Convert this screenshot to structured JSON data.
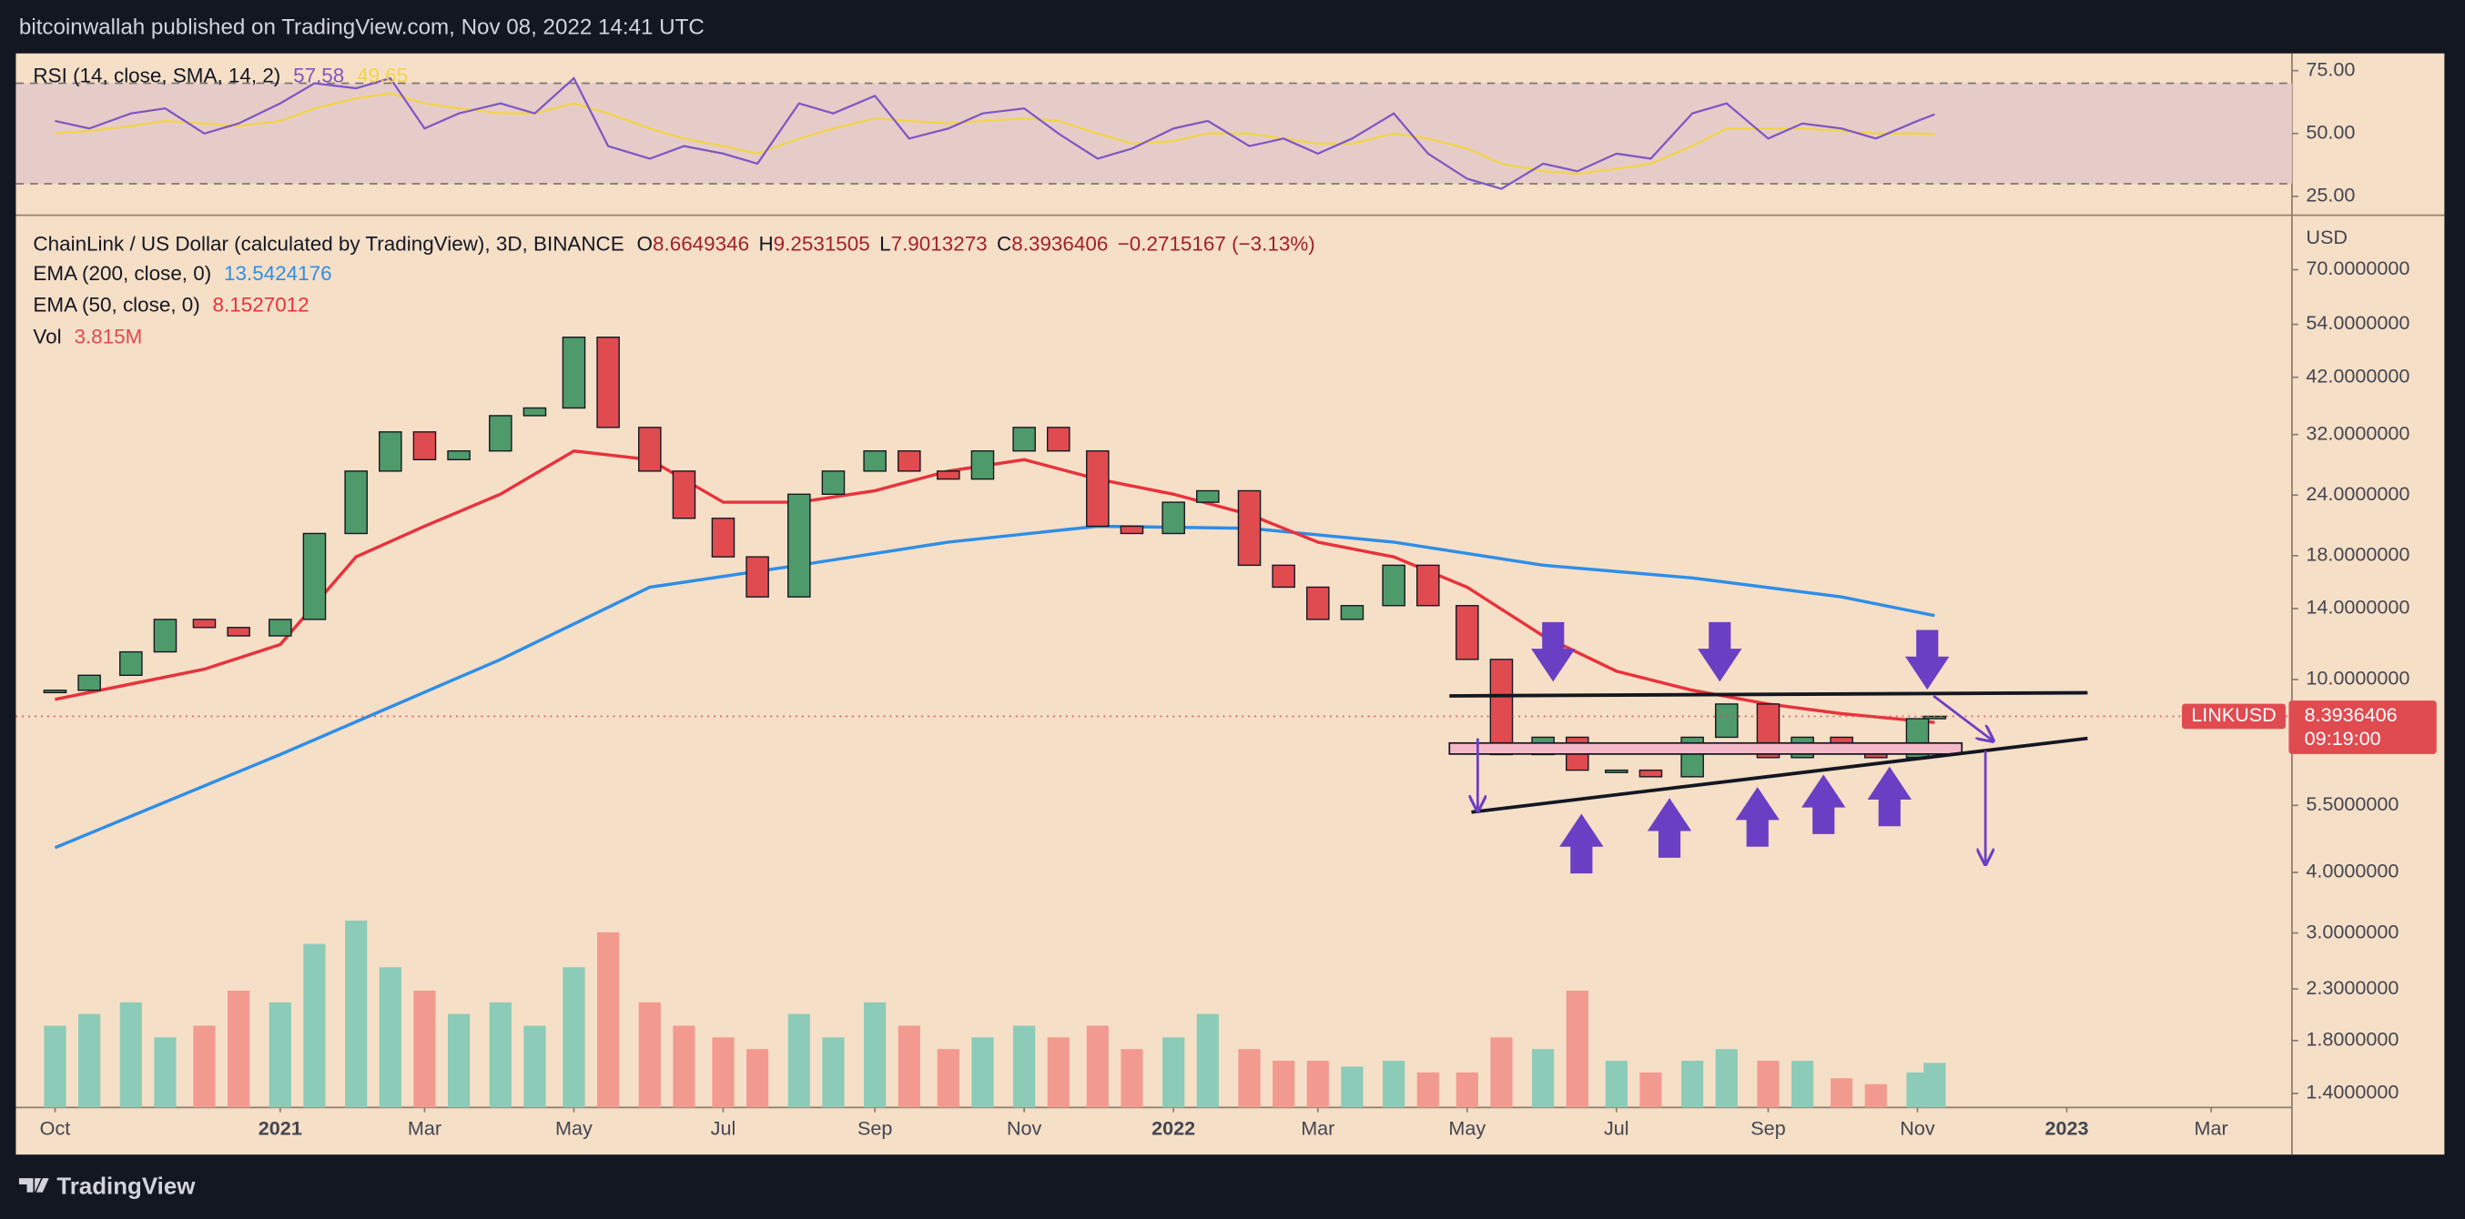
{
  "header": {
    "publisher": "bitcoinwallah published on TradingView.com, Nov 08, 2022 14:41 UTC"
  },
  "footer": {
    "brand": "TradingView"
  },
  "chart_data": {
    "type": "candlestick",
    "title": "ChainLink / US Dollar (calculated by TradingView), 3D, BINANCE",
    "ohlc_legend": [
      {
        "label": "O",
        "value": 8.6649346
      },
      {
        "label": "H",
        "value": 9.2531505
      },
      {
        "label": "L",
        "value": 7.9013273
      },
      {
        "label": "C",
        "value": 8.3936406
      }
    ],
    "change": "−0.2715167 (−3.13%)",
    "symbol": "LINKUSD",
    "countdown": "09:19:00",
    "currency": "USD",
    "up_color": "#4f9a6a",
    "down_color": "#e04b50",
    "x": [
      "2020-10-01",
      "2020-10-15",
      "2020-11-01",
      "2020-11-15",
      "2020-12-01",
      "2020-12-15",
      "2021-01-01",
      "2021-01-15",
      "2021-02-01",
      "2021-02-15",
      "2021-03-01",
      "2021-03-15",
      "2021-04-01",
      "2021-04-15",
      "2021-05-01",
      "2021-05-15",
      "2021-06-01",
      "2021-06-15",
      "2021-07-01",
      "2021-07-15",
      "2021-08-01",
      "2021-08-15",
      "2021-09-01",
      "2021-09-15",
      "2021-10-01",
      "2021-10-15",
      "2021-11-01",
      "2021-11-15",
      "2021-12-01",
      "2021-12-15",
      "2022-01-01",
      "2022-01-15",
      "2022-02-01",
      "2022-02-15",
      "2022-03-01",
      "2022-03-15",
      "2022-04-01",
      "2022-04-15",
      "2022-05-01",
      "2022-05-15",
      "2022-06-01",
      "2022-06-15",
      "2022-07-01",
      "2022-07-15",
      "2022-08-01",
      "2022-08-15",
      "2022-09-01",
      "2022-09-15",
      "2022-10-01",
      "2022-10-15",
      "2022-11-01",
      "2022-11-08"
    ],
    "values": [
      9.5,
      10.2,
      11.4,
      13.3,
      12.8,
      12.3,
      13.3,
      20.0,
      26.9,
      32.4,
      28.4,
      29.6,
      35,
      36.3,
      50.8,
      33.1,
      26.9,
      21.5,
      17.9,
      14.8,
      24.1,
      26.9,
      29.6,
      26.9,
      25.9,
      29.6,
      33.1,
      29.6,
      20.7,
      20.0,
      23.2,
      24.5,
      17.2,
      15.5,
      13.3,
      14.2,
      17.2,
      14.2,
      11.0,
      7.0,
      7.6,
      6.5,
      6.5,
      6.3,
      7.6,
      8.9,
      6.9,
      7.6,
      7.3,
      6.9,
      8.3,
      8.3936406
    ],
    "log_scale": true,
    "ylim": [
      1.31,
      90
    ],
    "yticks": [
      {
        "value": 70,
        "label": "70.0000000"
      },
      {
        "value": 54,
        "label": "54.0000000"
      },
      {
        "value": 42,
        "label": "42.0000000"
      },
      {
        "value": 32,
        "label": "32.0000000"
      },
      {
        "value": 24,
        "label": "24.0000000"
      },
      {
        "value": 18,
        "label": "18.0000000"
      },
      {
        "value": 14,
        "label": "14.0000000"
      },
      {
        "value": 10,
        "label": "10.0000000"
      },
      {
        "value": 5.5,
        "label": "5.5000000"
      },
      {
        "value": 4,
        "label": "4.0000000"
      },
      {
        "value": 3,
        "label": "3.0000000"
      },
      {
        "value": 2.3,
        "label": "2.3000000"
      },
      {
        "value": 1.8,
        "label": "1.8000000"
      },
      {
        "value": 1.4,
        "label": "1.4000000"
      }
    ],
    "xlim": [
      "2020-09-15",
      "2023-04-03"
    ],
    "xticks": [
      {
        "value": "2020-10-01",
        "label": "Oct"
      },
      {
        "value": "2021-01-01",
        "label": "2021"
      },
      {
        "value": "2021-03-01",
        "label": "Mar"
      },
      {
        "value": "2021-05-01",
        "label": "May"
      },
      {
        "value": "2021-07-01",
        "label": "Jul"
      },
      {
        "value": "2021-09-01",
        "label": "Sep"
      },
      {
        "value": "2021-11-01",
        "label": "Nov"
      },
      {
        "value": "2022-01-01",
        "label": "2022"
      },
      {
        "value": "2022-03-01",
        "label": "Mar"
      },
      {
        "value": "2022-05-01",
        "label": "May"
      },
      {
        "value": "2022-07-01",
        "label": "Jul"
      },
      {
        "value": "2022-09-01",
        "label": "Sep"
      },
      {
        "value": "2022-11-01",
        "label": "Nov"
      },
      {
        "value": "2023-01-01",
        "label": "2023"
      },
      {
        "value": "2023-03-01",
        "label": "Mar"
      }
    ],
    "overlays": [
      {
        "name": "EMA (200, close, 0)",
        "color": "#2e8ee8",
        "last_value": 13.5424176,
        "x": [
          "2020-10-01",
          "2021-01-01",
          "2021-04-01",
          "2021-06-01",
          "2021-08-01",
          "2021-10-01",
          "2021-12-01",
          "2022-02-01",
          "2022-04-01",
          "2022-06-01",
          "2022-08-01",
          "2022-10-01",
          "2022-11-08"
        ],
        "values": [
          4.5,
          7.0,
          11.0,
          15.5,
          17.2,
          19.2,
          20.7,
          20.5,
          19.2,
          17.2,
          16.2,
          14.8,
          13.5424176
        ]
      },
      {
        "name": "EMA (50, close, 0)",
        "color": "#e8323c",
        "last_value": 8.1527012,
        "x": [
          "2020-10-01",
          "2020-12-01",
          "2021-01-01",
          "2021-02-01",
          "2021-03-01",
          "2021-04-01",
          "2021-05-01",
          "2021-06-01",
          "2021-07-01",
          "2021-08-01",
          "2021-09-01",
          "2021-10-01",
          "2021-11-01",
          "2021-12-01",
          "2022-01-01",
          "2022-02-01",
          "2022-03-01",
          "2022-04-01",
          "2022-05-01",
          "2022-06-01",
          "2022-07-01",
          "2022-08-01",
          "2022-09-01",
          "2022-10-01",
          "2022-11-08"
        ],
        "values": [
          9.1,
          10.5,
          11.8,
          17.9,
          20.7,
          24.1,
          29.6,
          28.4,
          23.2,
          23.2,
          24.5,
          26.9,
          28.4,
          25.9,
          24.1,
          21.9,
          19.2,
          17.9,
          15.5,
          12.3,
          10.4,
          9.5,
          8.9,
          8.5,
          8.1527012
        ]
      }
    ],
    "volume": {
      "name": "Vol",
      "last_label": "3.815M",
      "up_color": "#8ccbb8",
      "down_color": "#f39a90",
      "ylim": [
        0,
        19500000
      ],
      "values": [
        7000000,
        8000000,
        9000000,
        6000000,
        7000000,
        10000000,
        9000000,
        14000000,
        16000000,
        12000000,
        10000000,
        8000000,
        9000000,
        7000000,
        12000000,
        15000000,
        9000000,
        7000000,
        6000000,
        5000000,
        8000000,
        6000000,
        9000000,
        7000000,
        5000000,
        6000000,
        7000000,
        6000000,
        7000000,
        5000000,
        6000000,
        8000000,
        5000000,
        4000000,
        4000000,
        3500000,
        4000000,
        3000000,
        3000000,
        6000000,
        5000000,
        10000000,
        4000000,
        3000000,
        4000000,
        5000000,
        4000000,
        4000000,
        2500000,
        2000000,
        3000000,
        3815000
      ]
    },
    "rsi": {
      "name": "RSI (14, close, SMA, 14, 2)",
      "color": "#7e57c2",
      "sma_color": "#f2d447",
      "last_value": 57.58,
      "sma_last_value": 49.65,
      "ylim": [
        18.75,
        80.6
      ],
      "yticks": [
        {
          "value": 75,
          "label": "75.00"
        },
        {
          "value": 50,
          "label": "50.00"
        },
        {
          "value": 25,
          "label": "25.00"
        }
      ],
      "bands": [
        30,
        70
      ],
      "values": [
        55,
        52,
        58,
        60,
        50,
        54,
        62,
        70,
        68,
        72,
        52,
        58,
        62,
        58,
        72,
        45,
        40,
        45,
        42,
        38,
        62,
        58,
        65,
        48,
        52,
        58,
        60,
        50,
        40,
        44,
        52,
        55,
        45,
        48,
        42,
        48,
        58,
        42,
        32,
        28,
        38,
        35,
        42,
        40,
        58,
        62,
        48,
        54,
        52,
        48,
        55,
        57.58
      ],
      "sma": [
        50,
        51,
        53,
        55,
        54,
        53,
        55,
        60,
        64,
        66,
        62,
        60,
        58,
        58,
        62,
        58,
        52,
        48,
        45,
        42,
        48,
        52,
        56,
        55,
        54,
        55,
        56,
        55,
        50,
        46,
        47,
        50,
        50,
        48,
        46,
        46,
        50,
        48,
        44,
        38,
        35,
        34,
        36,
        38,
        45,
        52,
        52,
        52,
        51,
        50,
        50,
        49.65
      ]
    }
  }
}
